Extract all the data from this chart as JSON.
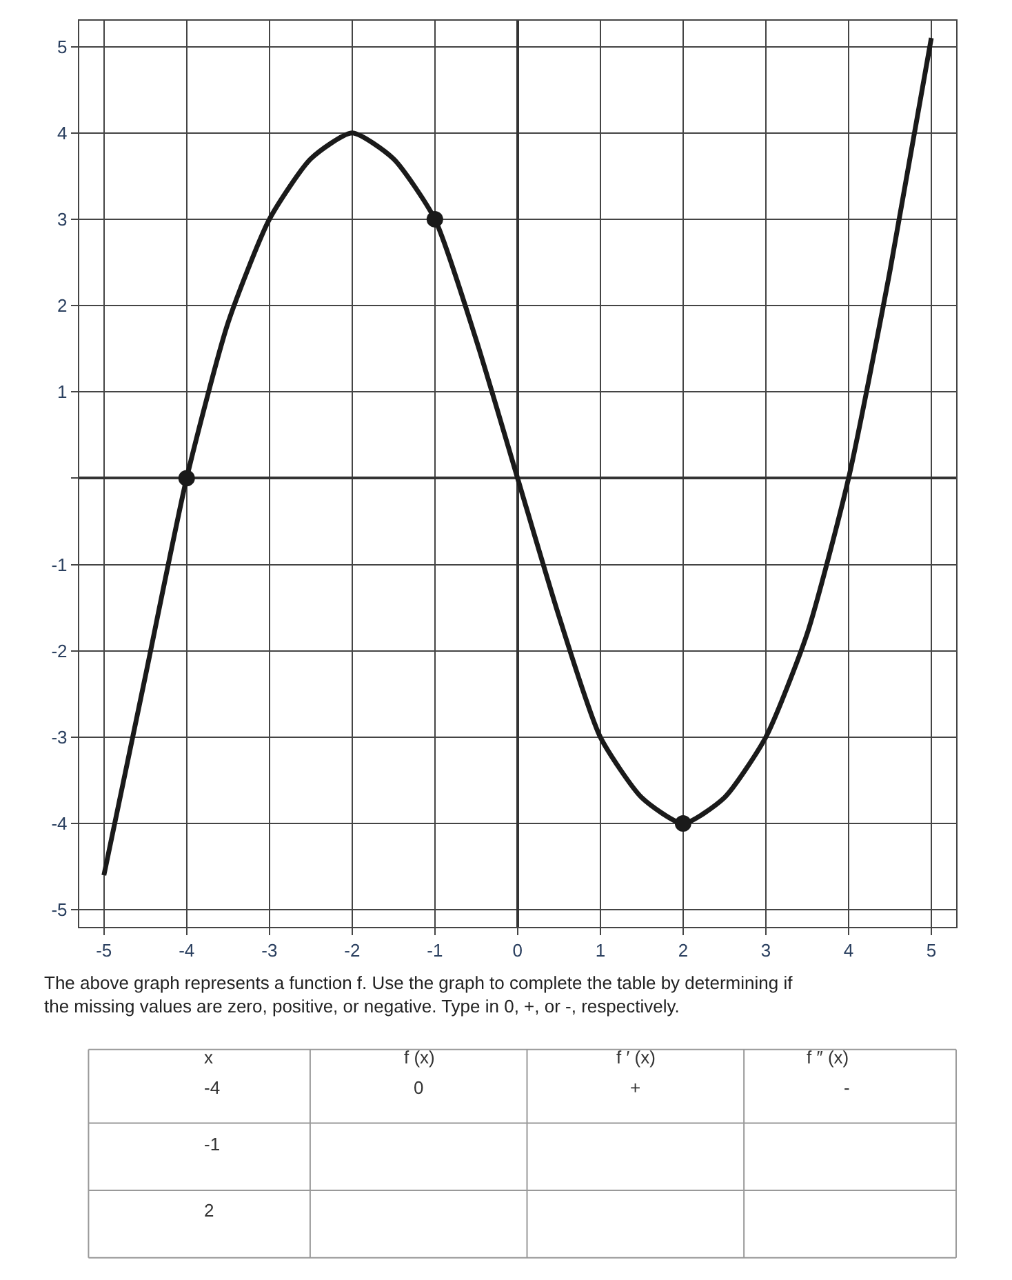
{
  "chart_data": {
    "type": "line",
    "x": [
      -5,
      -4.5,
      -4,
      -3.5,
      -3,
      -2.5,
      -2,
      -1.5,
      -1,
      -0.5,
      0,
      0.5,
      1,
      1.5,
      2,
      2.5,
      3,
      3.5,
      4,
      4.5,
      5
    ],
    "series": [
      {
        "color": "#1a1a1a",
        "values": [
          -4.6,
          -2.3,
          0,
          1.8,
          3,
          3.7,
          4,
          3.7,
          3,
          1.6,
          0,
          -1.6,
          -3,
          -3.7,
          -4,
          -3.7,
          -3,
          -1.8,
          0,
          2.4,
          5.1
        ],
        "marker": "none"
      },
      {
        "type": "scatter",
        "color": "#1a1a1a",
        "x": [
          -4,
          -1,
          2
        ],
        "values": [
          0,
          3,
          -4
        ],
        "marker": "circle"
      }
    ],
    "xlim": [
      -5.3,
      5.3
    ],
    "ylim": [
      -5.2,
      5.3
    ],
    "xticks": [
      -5,
      -4,
      -3,
      -2,
      -1,
      0,
      1,
      2,
      3,
      4,
      5
    ],
    "yticks": [
      -5,
      -4,
      -3,
      -2,
      -1,
      {
        "value": 0,
        "label": null
      },
      1,
      2,
      3,
      4,
      5
    ],
    "grid": true,
    "annotations": [
      "The above graph represents a function f. Use the graph to complete the table by determining if the missing values are zero, positive, or negative. Type in 0, +, or -, respectively.",
      "x",
      "f (x)",
      "f ′ (x)",
      "f ″ (x)",
      "-4",
      "0",
      "+",
      "-",
      "-1",
      "2"
    ]
  }
}
